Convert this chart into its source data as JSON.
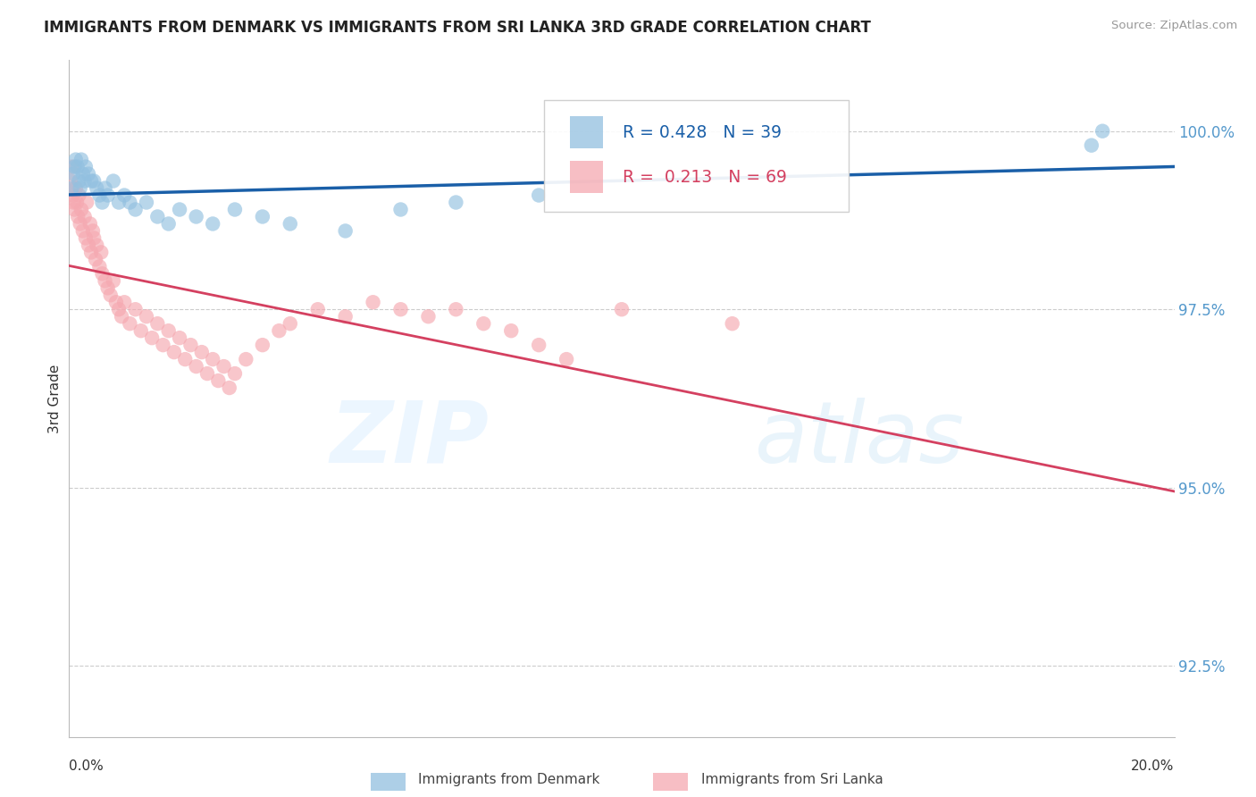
{
  "title": "IMMIGRANTS FROM DENMARK VS IMMIGRANTS FROM SRI LANKA 3RD GRADE CORRELATION CHART",
  "source": "Source: ZipAtlas.com",
  "ylabel": "3rd Grade",
  "xlim": [
    0.0,
    20.0
  ],
  "ylim": [
    91.5,
    101.0
  ],
  "yticks": [
    92.5,
    95.0,
    97.5,
    100.0
  ],
  "ytick_labels": [
    "92.5%",
    "95.0%",
    "97.5%",
    "100.0%"
  ],
  "denmark_scatter_color": "#92c0e0",
  "srilanka_scatter_color": "#f5a8b0",
  "denmark_line_color": "#1a5fa8",
  "srilanka_line_color": "#d44060",
  "denmark_R": 0.428,
  "denmark_N": 39,
  "srilanka_R": 0.213,
  "srilanka_N": 69,
  "legend_label_denmark": "Immigrants from Denmark",
  "legend_label_srilanka": "Immigrants from Sri Lanka",
  "tick_color": "#5599cc",
  "grid_color": "#cccccc",
  "dk_x": [
    0.05,
    0.08,
    0.1,
    0.12,
    0.15,
    0.18,
    0.2,
    0.22,
    0.25,
    0.28,
    0.3,
    0.35,
    0.4,
    0.45,
    0.5,
    0.55,
    0.6,
    0.65,
    0.7,
    0.8,
    0.9,
    1.0,
    1.1,
    1.2,
    1.4,
    1.6,
    1.8,
    2.0,
    2.3,
    2.6,
    3.0,
    3.5,
    4.0,
    5.0,
    6.0,
    7.0,
    8.5,
    18.5,
    18.7
  ],
  "dk_y": [
    99.2,
    99.4,
    99.5,
    99.6,
    99.5,
    99.3,
    99.2,
    99.6,
    99.4,
    99.3,
    99.5,
    99.4,
    99.3,
    99.3,
    99.2,
    99.1,
    99.0,
    99.2,
    99.1,
    99.3,
    99.0,
    99.1,
    99.0,
    98.9,
    99.0,
    98.8,
    98.7,
    98.9,
    98.8,
    98.7,
    98.9,
    98.8,
    98.7,
    98.6,
    98.9,
    99.0,
    99.1,
    99.8,
    100.0
  ],
  "sl_x": [
    0.03,
    0.05,
    0.07,
    0.08,
    0.1,
    0.12,
    0.14,
    0.16,
    0.18,
    0.2,
    0.22,
    0.25,
    0.28,
    0.3,
    0.32,
    0.35,
    0.38,
    0.4,
    0.43,
    0.45,
    0.48,
    0.5,
    0.55,
    0.58,
    0.6,
    0.65,
    0.7,
    0.75,
    0.8,
    0.85,
    0.9,
    0.95,
    1.0,
    1.1,
    1.2,
    1.3,
    1.4,
    1.5,
    1.6,
    1.7,
    1.8,
    1.9,
    2.0,
    2.1,
    2.2,
    2.3,
    2.4,
    2.5,
    2.6,
    2.7,
    2.8,
    2.9,
    3.0,
    3.2,
    3.5,
    3.8,
    4.0,
    4.5,
    5.0,
    5.5,
    6.0,
    6.5,
    7.0,
    7.5,
    8.0,
    8.5,
    9.0,
    10.0,
    12.0
  ],
  "sl_y": [
    99.3,
    99.5,
    99.1,
    99.0,
    98.9,
    99.2,
    99.0,
    98.8,
    99.1,
    98.7,
    98.9,
    98.6,
    98.8,
    98.5,
    99.0,
    98.4,
    98.7,
    98.3,
    98.6,
    98.5,
    98.2,
    98.4,
    98.1,
    98.3,
    98.0,
    97.9,
    97.8,
    97.7,
    97.9,
    97.6,
    97.5,
    97.4,
    97.6,
    97.3,
    97.5,
    97.2,
    97.4,
    97.1,
    97.3,
    97.0,
    97.2,
    96.9,
    97.1,
    96.8,
    97.0,
    96.7,
    96.9,
    96.6,
    96.8,
    96.5,
    96.7,
    96.4,
    96.6,
    96.8,
    97.0,
    97.2,
    97.3,
    97.5,
    97.4,
    97.6,
    97.5,
    97.4,
    97.5,
    97.3,
    97.2,
    97.0,
    96.8,
    97.5,
    97.3
  ]
}
